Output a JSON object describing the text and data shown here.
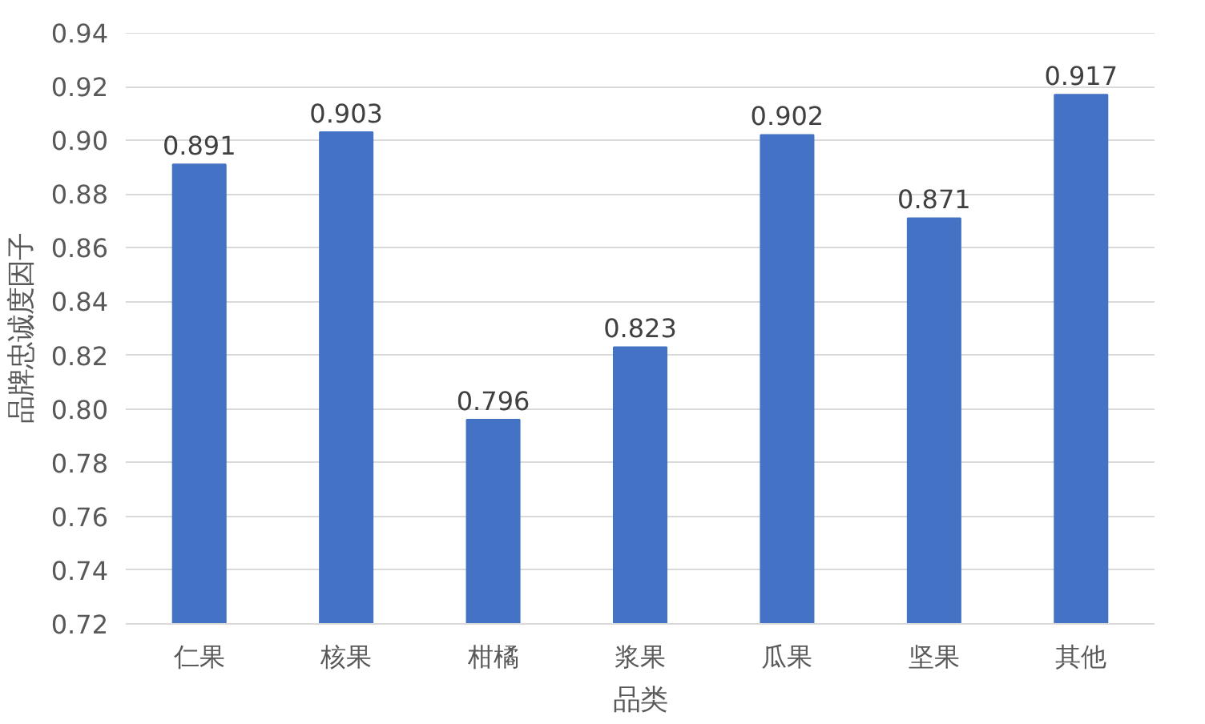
{
  "chart_data": {
    "type": "bar",
    "xlabel": "品类",
    "ylabel": "品牌忠诚度因子",
    "categories": [
      "仁果",
      "核果",
      "柑橘",
      "浆果",
      "瓜果",
      "坚果",
      "其他"
    ],
    "values": [
      0.891,
      0.903,
      0.796,
      0.823,
      0.902,
      0.871,
      0.917
    ],
    "color": "#4472c4",
    "ylim": [
      0.72,
      0.94
    ],
    "yticks": [
      "0.72",
      "0.74",
      "0.76",
      "0.78",
      "0.80",
      "0.82",
      "0.84",
      "0.86",
      "0.88",
      "0.90",
      "0.92",
      "0.94"
    ],
    "grid": "y",
    "data_labels": true
  }
}
